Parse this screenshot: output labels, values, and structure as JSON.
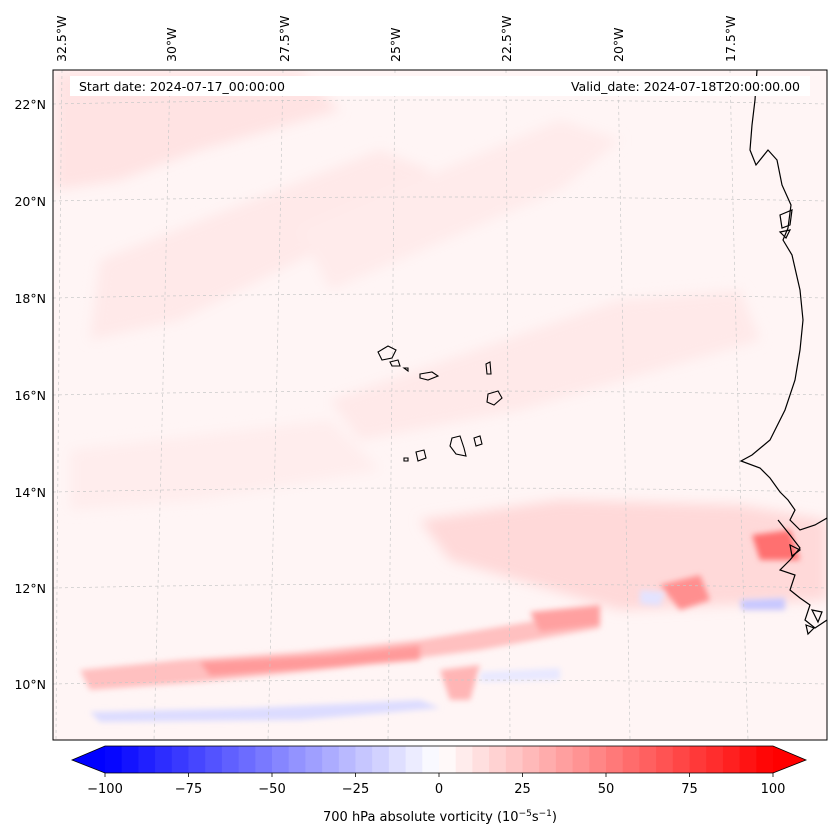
{
  "map": {
    "start_date_label": "Start date: 2024-07-17_00:00:00",
    "valid_date_label": "Valid_date: 2024-07-18T20:00:00.00",
    "longitude_labels": [
      "32.5°W",
      "30°W",
      "27.5°W",
      "25°W",
      "22.5°W",
      "20°W",
      "17.5°W"
    ],
    "latitude_labels": [
      "22°N",
      "20°N",
      "18°N",
      "16°N",
      "14°N",
      "12°N",
      "10°N"
    ],
    "field": "700 hPa absolute vorticity",
    "colormap": "bwr",
    "colors": {
      "negative": "#0000ff",
      "zero": "#ffffff",
      "positive": "#ff0000",
      "coastline": "#000000"
    },
    "grid": "dashed-gray",
    "features": [
      "Cabo Verde islands",
      "West African coastline"
    ]
  },
  "colorbar": {
    "ticks": [
      "−100",
      "−75",
      "−50",
      "−25",
      "0",
      "25",
      "50",
      "75",
      "100"
    ],
    "min": -100,
    "max": 100,
    "levels": 40,
    "extend": "both",
    "label_main": "700 hPa absolute vorticity (10",
    "label_exp1": "−5",
    "label_mid": "s",
    "label_exp2": "−1",
    "label_end": ")"
  }
}
